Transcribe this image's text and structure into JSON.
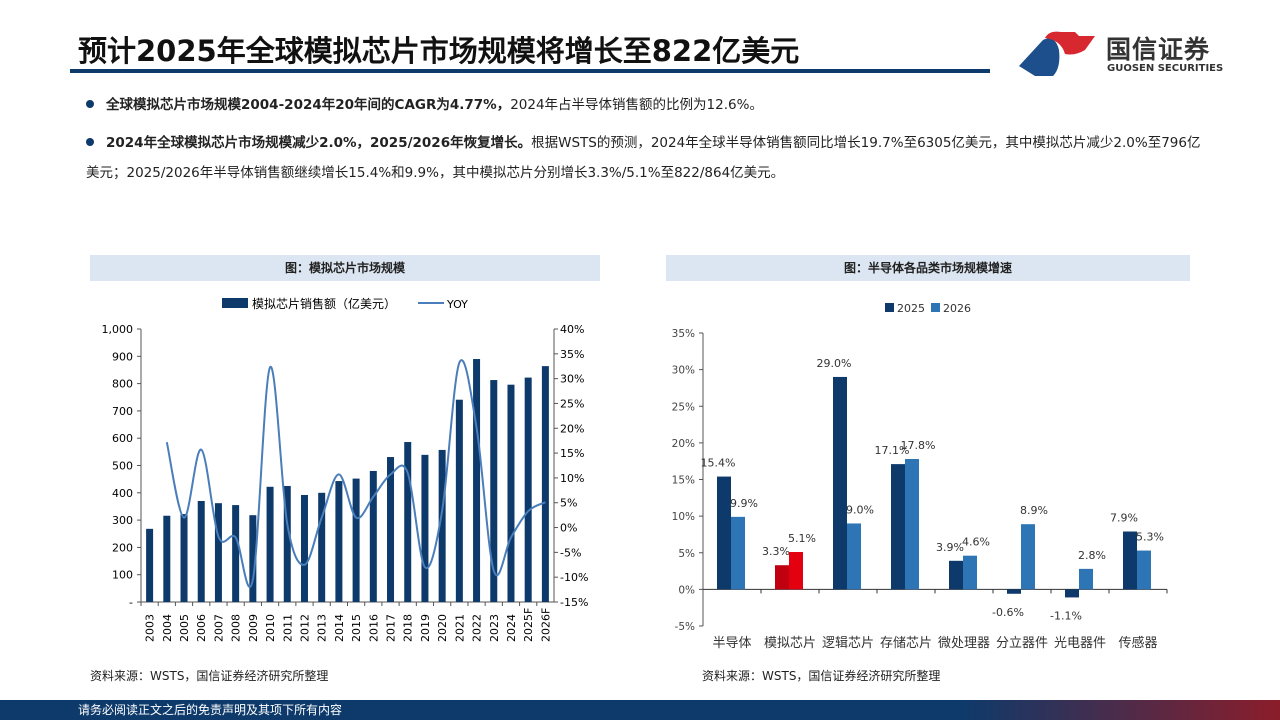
{
  "header": {
    "title": "预计2025年全球模拟芯片市场规模将增长至822亿美元"
  },
  "logo": {
    "cn": "国信证券",
    "en": "GUOSEN SECURITIES",
    "colors": {
      "red": "#d7282f",
      "blue": "#1c4f8c"
    }
  },
  "bullets": [
    {
      "bold": "全球模拟芯片市场规模2004-2024年20年间的CAGR为4.77%，",
      "text": "2024年占半导体销售额的比例为12.6%。"
    },
    {
      "bold": "2024年全球模拟芯片市场规模减少2.0%，2025/2026年恢复增长。",
      "text": "根据WSTS的预测，2024年全球半导体销售额同比增长19.7%至6305亿美元，其中模拟芯片减少2.0%至796亿美元；2025/2026年半导体销售额继续增长15.4%和9.9%，其中模拟芯片分别增长3.3%/5.1%至822/864亿美元。"
    }
  ],
  "left_chart_title": "图：模拟芯片市场规模",
  "right_chart_title": "图：半导体各品类市场规模增速",
  "source_left": "资料来源：WSTS，国信证券经济研究所整理",
  "source_right": "资料来源：WSTS，国信证券经济研究所整理",
  "footer": "请务必阅读正文之后的免责声明及其项下所有内容",
  "chart_data": [
    {
      "type": "bar+line",
      "categories": [
        "2003",
        "2004",
        "2005",
        "2006",
        "2007",
        "2008",
        "2009",
        "2010",
        "2011",
        "2012",
        "2013",
        "2014",
        "2015",
        "2016",
        "2017",
        "2018",
        "2019",
        "2020",
        "2021",
        "2022",
        "2023",
        "2024",
        "2025F",
        "2026F"
      ],
      "series": [
        {
          "name": "模拟芯片销售额（亿美元）",
          "type": "bar",
          "axis": "left",
          "color": "#0d3a6b",
          "values": [
            268,
            316,
            322,
            370,
            362,
            355,
            318,
            422,
            425,
            392,
            400,
            443,
            452,
            480,
            531,
            586,
            539,
            557,
            741,
            890,
            813,
            796,
            822,
            864
          ]
        },
        {
          "name": "YOY",
          "type": "line",
          "axis": "right",
          "color": "#4a7ebb",
          "values": [
            null,
            17.2,
            2.0,
            15.7,
            -1.8,
            -2.0,
            -10.5,
            32.3,
            0.7,
            -7.5,
            2.0,
            10.7,
            2.0,
            6.2,
            10.7,
            11.0,
            -8.0,
            3.4,
            33.2,
            20.1,
            -8.7,
            -2.0,
            3.3,
            5.1
          ]
        }
      ],
      "y_left": {
        "range": [
          0,
          1000
        ],
        "ticks": [
          "-",
          "100",
          "200",
          "300",
          "400",
          "500",
          "600",
          "700",
          "800",
          "900",
          "1,000"
        ]
      },
      "y_right": {
        "range": [
          -15,
          40
        ],
        "ticks": [
          "-15%",
          "-10%",
          "-5%",
          "0%",
          "5%",
          "10%",
          "15%",
          "20%",
          "25%",
          "30%",
          "35%",
          "40%"
        ]
      },
      "legend": "top"
    },
    {
      "type": "bar",
      "categories": [
        "半导体",
        "模拟芯片",
        "逻辑芯片",
        "存储芯片",
        "微处理器",
        "分立器件",
        "光电器件",
        "传感器"
      ],
      "series": [
        {
          "name": "2025",
          "color": "#0d3a6b",
          "values": [
            15.4,
            3.3,
            29.0,
            17.1,
            3.9,
            -0.6,
            -1.1,
            7.9
          ]
        },
        {
          "name": "2026",
          "color": "#2e75b6",
          "values": [
            9.9,
            5.1,
            9.0,
            17.8,
            4.6,
            8.9,
            2.8,
            5.3
          ]
        }
      ],
      "labels": {
        "2025": [
          "15.4%",
          "3.3%",
          "29.0%",
          "17.1%",
          "3.9%",
          "-0.6%",
          "-1.1%",
          "7.9%"
        ],
        "2026": [
          "9.9%",
          "5.1%",
          "9.0%",
          "17.8%",
          "4.6%",
          "8.9%",
          "2.8%",
          "5.3%"
        ]
      },
      "highlight": {
        "category": "模拟芯片",
        "color": "#d7000f"
      },
      "y": {
        "range": [
          -5,
          35
        ],
        "ticks": [
          "-5%",
          "0%",
          "5%",
          "10%",
          "15%",
          "20%",
          "25%",
          "30%",
          "35%"
        ]
      },
      "legend": "top"
    }
  ]
}
